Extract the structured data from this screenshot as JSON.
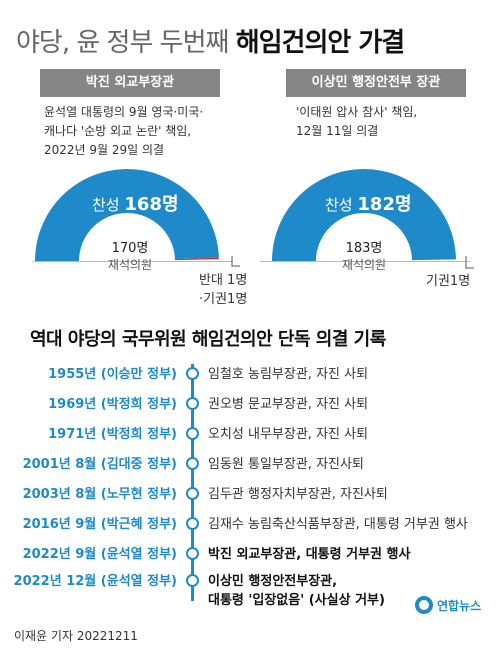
{
  "title": {
    "light": "야당, 윤 정부 두번째",
    "bold": "해임건의안 가결"
  },
  "panels": [
    {
      "header": "박진 외교부장관",
      "desc": [
        "윤석열 대통령의 9월 영국·미국·",
        "캐나다 '순방 외교 논란' 책임,",
        "2022년 9월 29일 의결"
      ],
      "favor_label": "찬성",
      "favor_count": "168명",
      "present": "170명",
      "present_label": "재석의원",
      "side": [
        "반대 1명",
        "·기권1명"
      ],
      "favor_value": 168,
      "present_value": 170
    },
    {
      "header": "이상민 행정안전부 장관",
      "desc": [
        "'이태원 압사 참사' 책임,",
        "12월 11일 의결"
      ],
      "favor_label": "찬성",
      "favor_count": "182명",
      "present": "183명",
      "present_label": "재석의원",
      "side": [
        "기권1명"
      ],
      "favor_value": 182,
      "present_value": 183
    }
  ],
  "section_title": "역대 야당의 국무위원 해임건의안 단독 의결 기록",
  "timeline": [
    {
      "year": "1955년 (이승만 정부)",
      "event": "임철호 농림부장관, 자진 사퇴"
    },
    {
      "year": "1969년 (박정희 정부)",
      "event": "권오병 문교부장관, 자진 사퇴"
    },
    {
      "year": "1971년 (박정희 정부)",
      "event": "오치성 내무부장관, 자진 사퇴"
    },
    {
      "year": "2001년 8월 (김대중 정부)",
      "event": "임동원 통일부장관, 자진사퇴"
    },
    {
      "year": "2003년 8월 (노무현 정부)",
      "event": "김두관 행정자치부장관, 자진사퇴"
    },
    {
      "year": "2016년 9월 (박근혜 정부)",
      "event": "김재수 농림축산식품부장관, 대통령 거부권 행사"
    },
    {
      "year": "2022년 9월 (윤석열 정부)",
      "event": "박진 외교부장관, 대통령 거부권 행사"
    },
    {
      "year": "2022년 12월 (윤석열 정부)",
      "event": "이상민 행정안전부장관,",
      "event2": "대통령 '입장없음' (사실상 거부)"
    }
  ],
  "credit": "이재윤 기자  20221211",
  "logo": "연합뉴스",
  "colors": {
    "accent": "#1f8ac9",
    "header_bg": "#858585",
    "against": "#c0392b"
  }
}
